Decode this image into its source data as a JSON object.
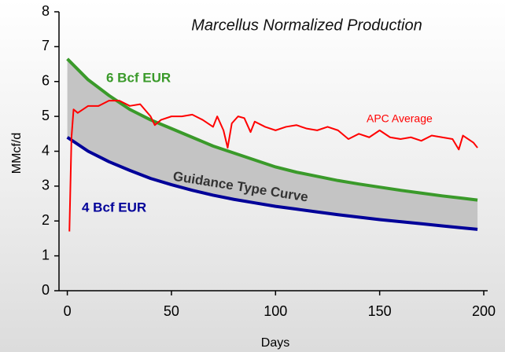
{
  "chart_data": {
    "type": "line",
    "title": "Marcellus Normalized Production",
    "x_label": "Days",
    "y_label": "MMcf/d",
    "xlim": [
      -4,
      200
    ],
    "ylim": [
      0,
      8
    ],
    "xticks": [
      0,
      50,
      100,
      150,
      200
    ],
    "yticks": [
      0,
      1,
      2,
      3,
      4,
      5,
      6,
      7,
      8
    ],
    "band_label": "Guidance Type Curve",
    "series": [
      {
        "name": "6 Bcf EUR",
        "color": "#3a9a2a",
        "x": [
          0,
          10,
          20,
          30,
          40,
          50,
          60,
          70,
          80,
          90,
          100,
          110,
          120,
          130,
          140,
          150,
          160,
          170,
          180,
          190,
          197
        ],
        "values": [
          6.65,
          6.05,
          5.6,
          5.2,
          4.9,
          4.65,
          4.4,
          4.15,
          3.95,
          3.75,
          3.55,
          3.4,
          3.28,
          3.16,
          3.06,
          2.97,
          2.88,
          2.8,
          2.72,
          2.65,
          2.6
        ]
      },
      {
        "name": "4 Bcf EUR",
        "color": "#000099",
        "x": [
          0,
          10,
          20,
          30,
          40,
          50,
          60,
          70,
          80,
          90,
          100,
          110,
          120,
          130,
          140,
          150,
          160,
          170,
          180,
          190,
          197
        ],
        "values": [
          4.4,
          4.0,
          3.7,
          3.45,
          3.22,
          3.04,
          2.88,
          2.74,
          2.62,
          2.52,
          2.42,
          2.34,
          2.26,
          2.18,
          2.11,
          2.04,
          1.98,
          1.92,
          1.86,
          1.8,
          1.76
        ]
      },
      {
        "name": "APC Average",
        "color": "#ff0000",
        "x": [
          1,
          2,
          3,
          5,
          10,
          15,
          20,
          25,
          30,
          35,
          40,
          42,
          45,
          50,
          55,
          60,
          65,
          70,
          72,
          75,
          77,
          79,
          82,
          85,
          88,
          90,
          95,
          100,
          105,
          110,
          115,
          120,
          125,
          130,
          135,
          140,
          145,
          150,
          155,
          160,
          165,
          170,
          175,
          180,
          185,
          188,
          190,
          195,
          197
        ],
        "values": [
          1.7,
          4.4,
          5.2,
          5.1,
          5.3,
          5.3,
          5.45,
          5.45,
          5.3,
          5.35,
          5.0,
          4.75,
          4.9,
          5.0,
          5.0,
          5.05,
          4.9,
          4.7,
          5.0,
          4.6,
          4.1,
          4.8,
          5.0,
          4.95,
          4.55,
          4.85,
          4.7,
          4.6,
          4.7,
          4.75,
          4.65,
          4.6,
          4.7,
          4.6,
          4.35,
          4.5,
          4.4,
          4.6,
          4.4,
          4.35,
          4.4,
          4.3,
          4.45,
          4.4,
          4.35,
          4.05,
          4.45,
          4.25,
          4.1
        ]
      }
    ]
  }
}
